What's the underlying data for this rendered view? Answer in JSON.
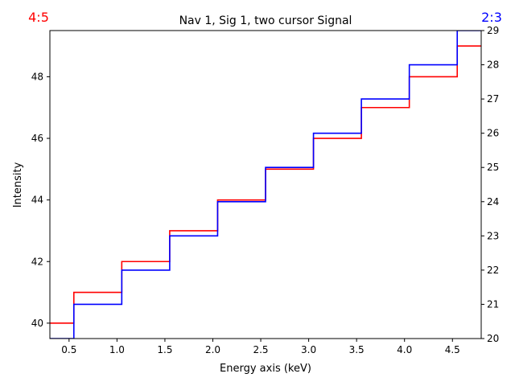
{
  "chart_data": {
    "type": "line",
    "title": "Nav 1, Sig 1, two cursor Signal",
    "xlabel": "Energy axis (keV)",
    "ylabel": "Intensity",
    "corner_left": "4:5",
    "corner_right": "2:3",
    "colors": {
      "left_series": "#ff0000",
      "right_series": "#0000ff",
      "axes": "#000000"
    },
    "xlim": [
      0.3,
      4.8
    ],
    "ylim_left": [
      39.5,
      49.5
    ],
    "ylim_right": [
      20,
      29
    ],
    "xticks": [
      0.5,
      1.0,
      1.5,
      2.0,
      2.5,
      3.0,
      3.5,
      4.0,
      4.5
    ],
    "yticks_left": [
      40,
      42,
      44,
      46,
      48
    ],
    "yticks_right": [
      20,
      21,
      22,
      23,
      24,
      25,
      26,
      27,
      28,
      29
    ],
    "series": [
      {
        "axis": "left",
        "drawstyle": "steps-mid",
        "color": "#ff0000",
        "x": [
          0.3,
          0.8,
          1.3,
          1.8,
          2.3,
          2.8,
          3.3,
          3.8,
          4.3,
          4.8
        ],
        "y": [
          40,
          41,
          42,
          43,
          44,
          45,
          46,
          47,
          48,
          49
        ]
      },
      {
        "axis": "right",
        "drawstyle": "steps-mid",
        "color": "#0000ff",
        "x": [
          0.3,
          0.8,
          1.3,
          1.8,
          2.3,
          2.8,
          3.3,
          3.8,
          4.3,
          4.8
        ],
        "y": [
          20,
          21,
          22,
          23,
          24,
          25,
          26,
          27,
          28,
          29
        ]
      }
    ]
  }
}
